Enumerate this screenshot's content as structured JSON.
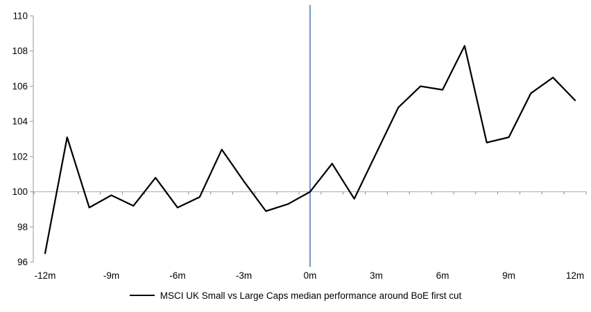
{
  "chart_data": {
    "type": "line",
    "title": "",
    "x": [
      -12,
      -11,
      -10,
      -9,
      -8,
      -7,
      -6,
      -5,
      -4,
      -3,
      -2,
      -1,
      0,
      1,
      2,
      3,
      4,
      5,
      6,
      7,
      8,
      9,
      10,
      11,
      12
    ],
    "series": [
      {
        "name": "MSCI UK Small vs Large Caps median performance around BoE first cut",
        "color": "#000000",
        "values": [
          96.5,
          103.1,
          99.1,
          99.8,
          99.2,
          100.8,
          99.1,
          99.7,
          102.4,
          100.6,
          98.9,
          99.3,
          100.0,
          101.6,
          99.6,
          102.2,
          104.8,
          106.0,
          105.8,
          108.3,
          102.8,
          103.1,
          105.6,
          106.5,
          105.2
        ]
      }
    ],
    "x_tick_values": [
      -12,
      -9,
      -6,
      -3,
      0,
      3,
      6,
      9,
      12
    ],
    "x_tick_labels": [
      "-12m",
      "-9m",
      "-6m",
      "-3m",
      "0m",
      "3m",
      "6m",
      "9m",
      "12m"
    ],
    "y_ticks": [
      96,
      98,
      100,
      102,
      104,
      106,
      108,
      110
    ],
    "xlim": [
      -12,
      12
    ],
    "ylim": [
      96,
      110
    ],
    "baseline_value": 100,
    "event_line": {
      "x": 0,
      "color": "#4f81bd"
    },
    "grid": "baseline-only",
    "legend_position": "bottom",
    "colors": {
      "series": "#000000",
      "axis": "#a6a6a6",
      "baseline": "#b3b3b3",
      "tick": "#8c8c8c",
      "text": "#000000",
      "background": "#ffffff"
    }
  }
}
